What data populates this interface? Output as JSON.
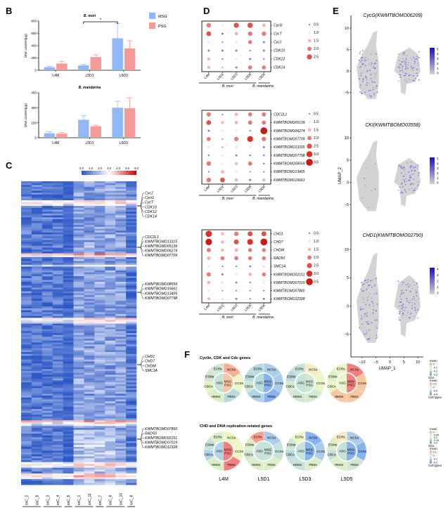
{
  "chart_data": [
    {
      "id": "B-top",
      "panel": "B",
      "type": "bar",
      "title": "B. mori",
      "xlabel": "",
      "ylabel": "DNA content(μg)",
      "categories": [
        "L4M",
        "L5D1",
        "L5D3"
      ],
      "ylim": [
        0,
        800
      ],
      "yticks": [
        0,
        200,
        400,
        600,
        800
      ],
      "series": [
        {
          "name": "MSG",
          "color": "#8fb8f4",
          "values": [
            50,
            80,
            520
          ],
          "errors": [
            15,
            15,
            240
          ]
        },
        {
          "name": "PSG",
          "color": "#f59a94",
          "values": [
            110,
            215,
            355
          ],
          "errors": [
            35,
            35,
            125
          ]
        }
      ],
      "annotations": [
        {
          "text": "*",
          "between": [
            "L5D1 MSG",
            "L5D3 MSG"
          ]
        }
      ],
      "legend": {
        "position": "top-right",
        "entries": [
          "MSG",
          "PSG"
        ]
      }
    },
    {
      "id": "B-bottom",
      "panel": "B",
      "type": "bar",
      "title": "B. mandarina",
      "xlabel": "",
      "ylabel": "DNA content(μg)",
      "categories": [
        "L4M",
        "L5D1",
        "L5D3"
      ],
      "ylim": [
        0,
        450
      ],
      "yticks": [
        0,
        150,
        300,
        450
      ],
      "series": [
        {
          "name": "MSG",
          "color": "#8fb8f4",
          "values": [
            45,
            180,
            300
          ],
          "errors": [
            15,
            40,
            65
          ]
        },
        {
          "name": "PSG",
          "color": "#f59a94",
          "values": [
            40,
            115,
            295
          ],
          "errors": [
            12,
            10,
            105
          ]
        }
      ]
    },
    {
      "id": "C",
      "panel": "C",
      "type": "heatmap",
      "colorbar": {
        "ticks": [
          "0.0",
          "1.0",
          "2.0",
          "3.0",
          "4.0",
          "5.0",
          "6.0"
        ],
        "range": [
          0,
          6
        ],
        "colors": [
          "#2a56c6",
          "#ffffff",
          "#cc0000"
        ]
      },
      "columns": [
        "snC_2",
        "snC_9",
        "snC_3",
        "snC_4",
        "snC_5",
        "snC_1",
        "snC_11",
        "snC_7",
        "snC_6",
        "snC_10",
        "snC_8"
      ],
      "column_groups": [
        {
          "label": "CBCs",
          "columns": [
            "snC_2",
            "snC_9"
          ]
        },
        {
          "label": "ESMs",
          "columns": [
            "snC_3",
            "snC_4"
          ]
        },
        {
          "label": "ECRs",
          "columns": [
            "snC_5"
          ]
        },
        {
          "label": "NCSs",
          "columns": [
            "snC_1",
            "snC_11"
          ]
        },
        {
          "label": "CSSs",
          "columns": [
            "snC_7"
          ]
        },
        {
          "label": "FBSs",
          "columns": [
            "snC_6",
            "snC_10"
          ]
        },
        {
          "label": "HMSs",
          "columns": [
            "snC_8"
          ]
        }
      ],
      "row_label_groups": [
        {
          "labels": [
            "CycJ",
            "CycG",
            "CycT",
            "CDK10",
            "CDK12",
            "CDK14"
          ]
        },
        {
          "labels": [
            "CDC2L1",
            "KWMTBOMO13315",
            "KWMTBOMO05139",
            "KWMTBOMO06274",
            "KWMTBOMO07709"
          ]
        },
        {
          "labels": [
            "KWMTBOMO08559",
            "KWMTBOMO15661",
            "KWMTBOMO13405",
            "KWMTBOMO07798"
          ]
        },
        {
          "labels": [
            "CHD1",
            "CHD7",
            "CHDM",
            "SMC1A"
          ]
        },
        {
          "labels": [
            "KWMTBOMO07860",
            "RAD50",
            "KWMTBOMO02151",
            "KWMTBOMO07019",
            "KWMTBOMO12328"
          ]
        }
      ]
    },
    {
      "id": "D1",
      "panel": "D",
      "type": "scatter",
      "subtype": "dot-plot",
      "x": [
        "L4M",
        "L5D1",
        "L5D3",
        "L5D5",
        "L5D6"
      ],
      "x_groups": [
        {
          "label": "B. mori",
          "columns": [
            "L4M",
            "L5D1",
            "L5D3",
            "L5D5"
          ]
        },
        {
          "label": "B. mandarina",
          "columns": [
            "L5D6"
          ]
        }
      ],
      "y": [
        "CycG",
        "CycT",
        "CycJ",
        "CDK10",
        "CDK12",
        "CDK14"
      ],
      "values": [
        [
          2.2,
          0.9,
          2.5,
          2.6,
          1.5
        ],
        [
          2.3,
          0.8,
          1.6,
          2.1,
          2.1
        ],
        [
          1.1,
          0.4,
          1.1,
          1.8,
          0.8
        ],
        [
          0.7,
          0.8,
          0.8,
          0.5,
          0.8
        ],
        [
          1.3,
          0.5,
          1.0,
          0.8,
          0.5
        ],
        [
          1.3,
          0.3,
          0.8,
          1.9,
          1.9
        ]
      ],
      "legend": {
        "position": "right",
        "entries": [
          "0.5",
          "1.0",
          "1.5",
          "2.0",
          "2.5"
        ]
      }
    },
    {
      "id": "D2",
      "panel": "D",
      "type": "scatter",
      "subtype": "dot-plot",
      "x": [
        "L4M",
        "L5D1",
        "L5D3",
        "L5D5",
        "L5D6"
      ],
      "x_groups": [
        {
          "label": "B. mori",
          "columns": [
            "L4M",
            "L5D1",
            "L5D3",
            "L5D5"
          ]
        },
        {
          "label": "B. mandarina",
          "columns": [
            "L5D6"
          ]
        }
      ],
      "y": [
        "CDC2L1",
        "KWMTBOMO05139",
        "KWMTBOMO06274",
        "KWMTBOMO07709",
        "KWMTBOMO13315",
        "KWMTBOMO07798",
        "KWMTBOMO08559",
        "KWMTBOMO13405",
        "KWMTBOMO15661"
      ],
      "values": [
        [
          2.1,
          0.5,
          1.5,
          1.9,
          2.0
        ],
        [
          2.3,
          1.3,
          1.5,
          2.0,
          2.0
        ],
        [
          0.8,
          0.9,
          0.9,
          0.5,
          3.5
        ],
        [
          1.9,
          0.4,
          2.1,
          2.9,
          2.1
        ],
        [
          1.1,
          0.4,
          1.1,
          1.1,
          0.8
        ],
        [
          0.6,
          1.0,
          0.8,
          0.6,
          0.6
        ],
        [
          2.2,
          0.9,
          1.3,
          2.0,
          0.6
        ],
        [
          0.5,
          1.5,
          1.1,
          0.4,
          0.5
        ],
        [
          2.2,
          2.3,
          1.5,
          0.8,
          1.4
        ]
      ],
      "legend": {
        "position": "right",
        "entries": [
          "0.5",
          "1.0",
          "1.5",
          "2.0",
          "2.5",
          "3.0",
          "3.5"
        ]
      }
    },
    {
      "id": "D3",
      "panel": "D",
      "type": "scatter",
      "subtype": "dot-plot",
      "x": [
        "L4M",
        "L5D1",
        "L5D3",
        "L5D5",
        "L5D6"
      ],
      "x_groups": [
        {
          "label": "B. mori",
          "columns": [
            "L4M",
            "L5D1",
            "L5D3",
            "L5D5"
          ]
        },
        {
          "label": "B. mandarina",
          "columns": [
            "L5D6"
          ]
        }
      ],
      "y": [
        "CHD1",
        "CHD7",
        "CHDM",
        "RAD50",
        "SMC1A",
        "KWMTBOMO02151",
        "KWMTBOMO07019",
        "KWMTBOMO07860",
        "KWMTBOMO12328"
      ],
      "values": [
        [
          3.2,
          1.4,
          2.1,
          2.4,
          2.4
        ],
        [
          3.3,
          1.4,
          2.4,
          2.9,
          3.5
        ],
        [
          2.0,
          1.3,
          1.6,
          1.8,
          1.8
        ],
        [
          1.7,
          1.9,
          1.9,
          1.9,
          1.8
        ],
        [
          0.9,
          0.5,
          0.5,
          0.7,
          1.2
        ],
        [
          2.0,
          0.8,
          1.1,
          1.5,
          1.8
        ],
        [
          1.5,
          1.2,
          0.7,
          0.5,
          0.9
        ],
        [
          1.0,
          0.4,
          0.5,
          0.5,
          0.5
        ],
        [
          1.3,
          1.1,
          0.8,
          0.5,
          0.8
        ]
      ],
      "legend": {
        "position": "right",
        "entries": [
          "0.5",
          "1.0",
          "1.5",
          "2.0",
          "2.5",
          "3.0",
          "3.5"
        ]
      }
    },
    {
      "id": "E",
      "panel": "E",
      "type": "scatter",
      "subtype": "umap-feature",
      "xlabel": "UMAP_1",
      "ylabel": "UMAP_2",
      "xlim": [
        -14,
        12
      ],
      "ylim": [
        -8,
        11
      ],
      "xticks": [
        -10,
        -5,
        0,
        5,
        10
      ],
      "yticks": [
        -5,
        0,
        5,
        10
      ],
      "plots": [
        {
          "title": "CycG(KWMTBOMO06209)",
          "colorbar_ticks": [
            "0",
            "1",
            "2",
            "3",
            "4",
            "5"
          ],
          "high_cluster": "both"
        },
        {
          "title": "CKI(KWMTBOMO03558)",
          "colorbar_ticks": [
            "0",
            "1",
            "2",
            "3",
            "4",
            "5"
          ],
          "high_cluster": "right"
        },
        {
          "title": "CHD1(KWMTBOMO02790)",
          "colorbar_ticks": [
            "0",
            "1",
            "2",
            "3",
            "4"
          ],
          "high_cluster": "both"
        }
      ],
      "colors": {
        "low": "#d3d3d3",
        "high": "#1a0bd6"
      }
    },
    {
      "id": "F",
      "panel": "F",
      "type": "pie",
      "subtype": "two-ring sunburst",
      "stages": [
        "L4M",
        "L5D1",
        "L5D3",
        "L5D5"
      ],
      "inner_labels": [
        "ASG",
        "MSG PSG"
      ],
      "outer_labels": [
        "NCSs",
        "CCSs",
        "FBSs",
        "HMSs",
        "CBCs",
        "ESMs",
        "ECRs"
      ],
      "rows": [
        {
          "title": "Cyclin, CDK and Cdc genes",
          "sgs_legend": {
            "title": "mean",
            "ticks": [
              "0",
              "-0.1",
              "-0.2",
              "-0.3"
            ],
            "caption": "SGs"
          },
          "cell_legend": {
            "title": "mean",
            "ticks": [
              "0.2",
              "0",
              "-0.2",
              "-0.4"
            ],
            "caption": "Cell types"
          },
          "rings": [
            {
              "inner": {
                "ASG": "#c6e2d9",
                "MSG PSG": "#f8c6a0"
              },
              "outer": {
                "NCSs": "#f6b097",
                "CCSs": "#eaf5c8",
                "FBSs": "#b9dbe0",
                "HMSs": "#dcefc8",
                "CBCs": "#e5f4c3",
                "ESMs": "#cfe7d3",
                "ECRs": "#cfe7d3"
              }
            },
            {
              "inner": {
                "ASG": "#b9dbe0",
                "MSG PSG": "#87b4f0"
              },
              "outer": {
                "NCSs": "#a9cdeb",
                "CCSs": "#a9cdeb",
                "FBSs": "#87b4f0",
                "HMSs": "#b0d4e8",
                "CBCs": "#cfe7d3",
                "ESMs": "#b9dbe0",
                "ECRs": "#b9dbe0"
              }
            },
            {
              "inner": {
                "ASG": "#c6e2d9",
                "MSG PSG": "#cfe7d3"
              },
              "outer": {
                "NCSs": "#f5ebc2",
                "CCSs": "#eaf5c8",
                "FBSs": "#d5ebcd",
                "HMSs": "#cfe7d3",
                "CBCs": "#d5ebcd",
                "ESMs": "#b9dbe0",
                "ECRs": "#c6e2d9"
              }
            },
            {
              "inner": {
                "ASG": "#eaf5c8",
                "MSG PSG": "#f57f7f"
              },
              "outer": {
                "NCSs": "#f57f7f",
                "CCSs": "#f8c6a0",
                "FBSs": "#f8c6a0",
                "HMSs": "#f8c6a0",
                "CBCs": "#eaf5c8",
                "ESMs": "#dcefc8",
                "ECRs": "#eaf5c8"
              }
            }
          ]
        },
        {
          "title": "CHD and DNA replication-related genes",
          "sgs_legend": {
            "title": "mean",
            "ticks": [
              "0",
              "-0.05",
              "-0.1",
              "-0.15",
              "-0.2"
            ],
            "caption": "SGs"
          },
          "cell_legend": {
            "title": "mean",
            "ticks": [
              "0.1",
              "0",
              "-0.1",
              "-0.2"
            ],
            "caption": "Cell types"
          },
          "rings": [
            {
              "inner": {
                "ASG": "#b0d4e8",
                "MSG PSG": "#f57f7f"
              },
              "outer": {
                "NCSs": "#eef7c4",
                "CCSs": "#eef7c4",
                "FBSs": "#f57f7f",
                "HMSs": "#dcefc8",
                "CBCs": "#b0d4e8",
                "ESMs": "#c6e2d9",
                "ECRs": "#dcefc8"
              }
            },
            {
              "inner": {
                "ASG": "#c6e2d9",
                "MSG PSG": "#c6e2d9"
              },
              "outer": {
                "NCSs": "#a9cdeb",
                "CCSs": "#c6e2d9",
                "FBSs": "#dcefc8",
                "HMSs": "#dcefc8",
                "CBCs": "#cfe7d3",
                "ESMs": "#dcefc8",
                "ECRs": "#f6a08a"
              }
            },
            {
              "inner": {
                "ASG": "#c6e2d9",
                "MSG PSG": "#87b4f0"
              },
              "outer": {
                "NCSs": "#87b4f0",
                "CCSs": "#a9cdeb",
                "FBSs": "#dcefc8",
                "HMSs": "#c6e2d9",
                "CBCs": "#b9dbe0",
                "ESMs": "#cfe7d3",
                "ECRs": "#eef7c4"
              }
            },
            {
              "inner": {
                "ASG": "#c6e2d9",
                "MSG PSG": "#87b4f0"
              },
              "outer": {
                "NCSs": "#a9cdeb",
                "CCSs": "#87b4f0",
                "FBSs": "#cfe7d3",
                "HMSs": "#dcefc8",
                "CBCs": "#c6e2d9",
                "ESMs": "#dcefc8",
                "ECRs": "#f5ebc2"
              }
            }
          ]
        }
      ]
    }
  ],
  "panel_letters": {
    "B": "B",
    "C": "C",
    "D": "D",
    "E": "E",
    "F": "F"
  }
}
